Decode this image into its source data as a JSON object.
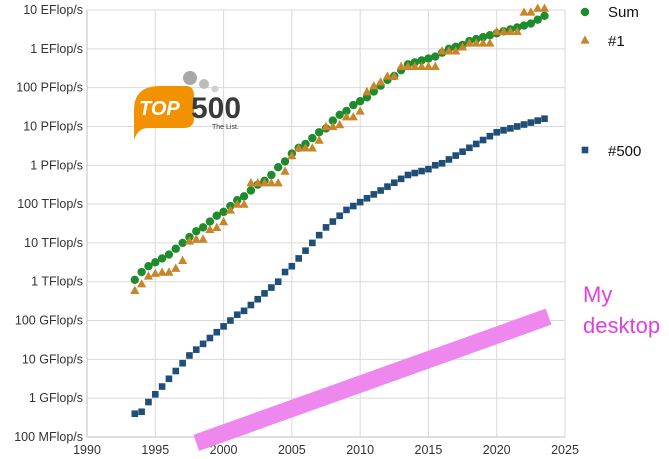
{
  "chart_data": {
    "type": "scatter",
    "title": "",
    "xlabel": "",
    "ylabel": "",
    "yscale": "log",
    "xlim": [
      1990,
      2025
    ],
    "ylim_flops": [
      100000000.0,
      1e+19
    ],
    "xticks": [
      "1990",
      "1995",
      "2000",
      "2005",
      "2010",
      "2015",
      "2020",
      "2025"
    ],
    "yticks": [
      {
        "label": "100 MFlop/s",
        "value": 100000000.0
      },
      {
        "label": "1 GFlop/s",
        "value": 1000000000.0
      },
      {
        "label": "10 GFlop/s",
        "value": 10000000000.0
      },
      {
        "label": "100 GFlop/s",
        "value": 100000000000.0
      },
      {
        "label": "1 TFlop/s",
        "value": 1000000000000.0
      },
      {
        "label": "10 TFlop/s",
        "value": 10000000000000.0
      },
      {
        "label": "100 TFlop/s",
        "value": 100000000000000.0
      },
      {
        "label": "1 PFlop/s",
        "value": 1000000000000000.0
      },
      {
        "label": "10 PFlop/s",
        "value": 1e+16
      },
      {
        "label": "100 PFlop/s",
        "value": 1e+17
      },
      {
        "label": "1 EFlop/s",
        "value": 1e+18
      },
      {
        "label": "10 EFlop/s",
        "value": 1e+19
      }
    ],
    "series": [
      {
        "name": "Sum",
        "marker": "circle",
        "color": "#1e8c2c",
        "x": [
          1993.5,
          1994.0,
          1994.5,
          1995.0,
          1995.5,
          1996.0,
          1996.5,
          1997.0,
          1997.5,
          1998.0,
          1998.5,
          1999.0,
          1999.5,
          2000.0,
          2000.5,
          2001.0,
          2001.5,
          2002.0,
          2002.5,
          2003.0,
          2003.5,
          2004.0,
          2004.5,
          2005.0,
          2005.5,
          2006.0,
          2006.5,
          2007.0,
          2007.5,
          2008.0,
          2008.5,
          2009.0,
          2009.5,
          2010.0,
          2010.5,
          2011.0,
          2011.5,
          2012.0,
          2012.5,
          2013.0,
          2013.5,
          2014.0,
          2014.5,
          2015.0,
          2015.5,
          2016.0,
          2016.5,
          2017.0,
          2017.5,
          2018.0,
          2018.5,
          2019.0,
          2019.5,
          2020.0,
          2020.5,
          2021.0,
          2021.5,
          2022.0,
          2022.5,
          2023.0,
          2023.5
        ],
        "log10_flops": [
          12.05,
          12.25,
          12.4,
          12.5,
          12.6,
          12.7,
          12.85,
          13.0,
          13.15,
          13.3,
          13.4,
          13.55,
          13.7,
          13.8,
          13.95,
          14.1,
          14.2,
          14.35,
          14.5,
          14.6,
          14.75,
          14.95,
          15.1,
          15.3,
          15.45,
          15.55,
          15.7,
          15.85,
          15.95,
          16.15,
          16.3,
          16.4,
          16.55,
          16.65,
          16.75,
          16.9,
          17.05,
          17.2,
          17.3,
          17.45,
          17.6,
          17.65,
          17.7,
          17.75,
          17.8,
          17.9,
          18.0,
          18.05,
          18.1,
          18.2,
          18.25,
          18.3,
          18.35,
          18.4,
          18.45,
          18.5,
          18.55,
          18.6,
          18.65,
          18.75,
          18.85
        ]
      },
      {
        "name": "#1",
        "marker": "triangle",
        "color": "#c8852a",
        "x": [
          1993.5,
          1994.0,
          1994.5,
          1995.0,
          1995.5,
          1996.0,
          1996.5,
          1997.0,
          1997.5,
          1998.0,
          1998.5,
          1999.0,
          1999.5,
          2000.0,
          2000.5,
          2001.0,
          2001.5,
          2002.0,
          2002.5,
          2003.0,
          2003.5,
          2004.0,
          2004.5,
          2005.0,
          2005.5,
          2006.0,
          2006.5,
          2007.0,
          2007.5,
          2008.0,
          2008.5,
          2009.0,
          2009.5,
          2010.0,
          2010.5,
          2011.0,
          2011.5,
          2012.0,
          2012.5,
          2013.0,
          2013.5,
          2014.0,
          2014.5,
          2015.0,
          2015.5,
          2016.0,
          2016.5,
          2017.0,
          2017.5,
          2018.0,
          2018.5,
          2019.0,
          2019.5,
          2020.0,
          2020.5,
          2021.0,
          2021.5,
          2022.0,
          2022.5,
          2023.0,
          2023.5
        ],
        "log10_flops": [
          11.78,
          11.95,
          12.15,
          12.22,
          12.25,
          12.25,
          12.35,
          12.55,
          13.05,
          13.1,
          13.1,
          13.35,
          13.4,
          13.55,
          13.85,
          14.0,
          14.0,
          14.55,
          14.55,
          14.55,
          14.55,
          14.55,
          14.85,
          15.25,
          15.45,
          15.45,
          15.45,
          15.65,
          16.0,
          16.0,
          16.05,
          16.25,
          16.25,
          16.4,
          16.9,
          17.05,
          17.15,
          17.3,
          17.3,
          17.55,
          17.55,
          17.55,
          17.55,
          17.55,
          17.55,
          17.95,
          17.95,
          17.95,
          18.05,
          18.15,
          18.15,
          18.15,
          18.15,
          18.45,
          18.45,
          18.45,
          18.45,
          18.95,
          18.95,
          19.05,
          19.05
        ]
      },
      {
        "name": "#500",
        "marker": "square",
        "color": "#1f4e79",
        "x": [
          1993.5,
          1994.0,
          1994.5,
          1995.0,
          1995.5,
          1996.0,
          1996.5,
          1997.0,
          1997.5,
          1998.0,
          1998.5,
          1999.0,
          1999.5,
          2000.0,
          2000.5,
          2001.0,
          2001.5,
          2002.0,
          2002.5,
          2003.0,
          2003.5,
          2004.0,
          2004.5,
          2005.0,
          2005.5,
          2006.0,
          2006.5,
          2007.0,
          2007.5,
          2008.0,
          2008.5,
          2009.0,
          2009.5,
          2010.0,
          2010.5,
          2011.0,
          2011.5,
          2012.0,
          2012.5,
          2013.0,
          2013.5,
          2014.0,
          2014.5,
          2015.0,
          2015.5,
          2016.0,
          2016.5,
          2017.0,
          2017.5,
          2018.0,
          2018.5,
          2019.0,
          2019.5,
          2020.0,
          2020.5,
          2021.0,
          2021.5,
          2022.0,
          2022.5,
          2023.0,
          2023.5
        ],
        "log10_flops": [
          8.6,
          8.65,
          8.9,
          9.1,
          9.3,
          9.5,
          9.7,
          9.9,
          10.1,
          10.25,
          10.4,
          10.55,
          10.7,
          10.85,
          11.0,
          11.15,
          11.25,
          11.4,
          11.55,
          11.7,
          11.85,
          12.0,
          12.25,
          12.4,
          12.6,
          12.8,
          13.0,
          13.2,
          13.4,
          13.55,
          13.7,
          13.85,
          13.95,
          14.05,
          14.15,
          14.25,
          14.35,
          14.45,
          14.55,
          14.65,
          14.75,
          14.8,
          14.85,
          14.9,
          15.0,
          15.05,
          15.15,
          15.25,
          15.35,
          15.45,
          15.55,
          15.65,
          15.75,
          15.85,
          15.9,
          15.95,
          16.0,
          16.05,
          16.1,
          16.15,
          16.2
        ]
      }
    ],
    "legend": [
      {
        "label": "Sum",
        "marker": "circle",
        "color": "#1e8c2c"
      },
      {
        "label": "#1",
        "marker": "triangle",
        "color": "#c8852a"
      },
      {
        "label": "#500",
        "marker": "square",
        "color": "#1f4e79"
      }
    ],
    "annotation": {
      "text_lines": [
        "My",
        "desktop"
      ],
      "color": "#e040e0",
      "band_color": "#ee88ee",
      "band_x": [
        1998.0,
        2023.8
      ],
      "band_log10_flops": [
        7.85,
        11.1
      ]
    },
    "logo": {
      "badge_text": "TOP",
      "number_text": "500",
      "tagline": "The List.",
      "badge_color": "#f39200"
    }
  }
}
